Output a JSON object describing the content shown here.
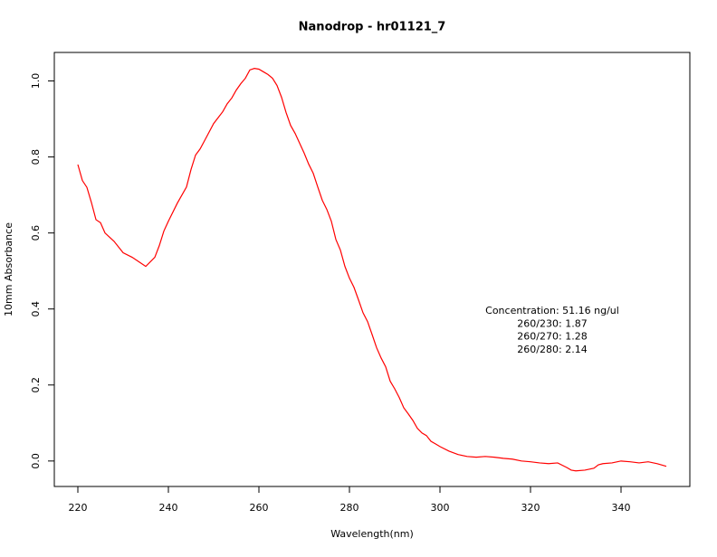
{
  "chart_data": {
    "type": "line",
    "title": "Nanodrop - hr01121_7",
    "xlabel": "Wavelength(nm)",
    "ylabel": "10mm Absorbance",
    "xlim": [
      214.8,
      355.2
    ],
    "ylim": [
      -0.067,
      1.075
    ],
    "xticks": [
      220,
      240,
      260,
      280,
      300,
      320,
      340
    ],
    "yticks": [
      {
        "value": 0,
        "label": "0.0"
      },
      0.2,
      0.4,
      0.6,
      0.8,
      {
        "value": 1,
        "label": "1.0"
      }
    ],
    "annotations": [
      "Concentration: 51.16 ng/ul",
      "260/230: 1.87",
      "260/270: 1.28",
      "260/280: 2.14"
    ],
    "x": [
      220,
      221,
      222,
      223,
      224,
      225,
      226,
      228,
      230,
      232,
      234,
      235,
      237,
      238,
      239,
      240,
      242,
      244,
      245,
      246,
      247,
      248,
      250,
      252,
      253,
      254,
      255,
      256,
      257,
      258,
      259,
      260,
      261,
      262,
      263,
      264,
      265,
      266,
      267,
      268,
      270,
      271,
      272,
      273,
      274,
      275,
      276,
      277,
      278,
      279,
      280,
      281,
      282,
      283,
      284,
      285,
      286,
      287,
      288,
      289,
      290,
      291,
      292,
      293,
      294,
      295,
      296,
      297,
      298,
      299,
      300,
      302,
      304,
      306,
      308,
      310,
      312,
      314,
      316,
      318,
      320,
      322,
      324,
      326,
      328,
      329,
      330,
      332,
      334,
      335,
      336,
      338,
      340,
      342,
      344,
      346,
      348,
      350
    ],
    "series": [
      {
        "name": "Absorbance",
        "color": "#ff0000",
        "values": [
          0.78,
          0.738,
          0.72,
          0.68,
          0.635,
          0.627,
          0.6,
          0.578,
          0.548,
          0.536,
          0.52,
          0.512,
          0.536,
          0.567,
          0.605,
          0.631,
          0.679,
          0.721,
          0.767,
          0.805,
          0.821,
          0.843,
          0.888,
          0.919,
          0.94,
          0.955,
          0.976,
          0.993,
          1.007,
          1.029,
          1.033,
          1.031,
          1.024,
          1.017,
          1.007,
          0.988,
          0.957,
          0.917,
          0.883,
          0.862,
          0.81,
          0.781,
          0.757,
          0.721,
          0.686,
          0.662,
          0.631,
          0.583,
          0.555,
          0.512,
          0.481,
          0.457,
          0.424,
          0.39,
          0.367,
          0.333,
          0.298,
          0.271,
          0.248,
          0.21,
          0.19,
          0.167,
          0.14,
          0.124,
          0.107,
          0.086,
          0.074,
          0.067,
          0.052,
          0.045,
          0.038,
          0.026,
          0.017,
          0.012,
          0.01,
          0.012,
          0.01,
          0.007,
          0.005,
          0,
          -0.002,
          -0.005,
          -0.007,
          -0.005,
          -0.017,
          -0.024,
          -0.026,
          -0.024,
          -0.019,
          -0.01,
          -0.007,
          -0.005,
          0,
          -0.002,
          -0.005,
          -0.002,
          -0.007,
          -0.014
        ]
      }
    ]
  }
}
